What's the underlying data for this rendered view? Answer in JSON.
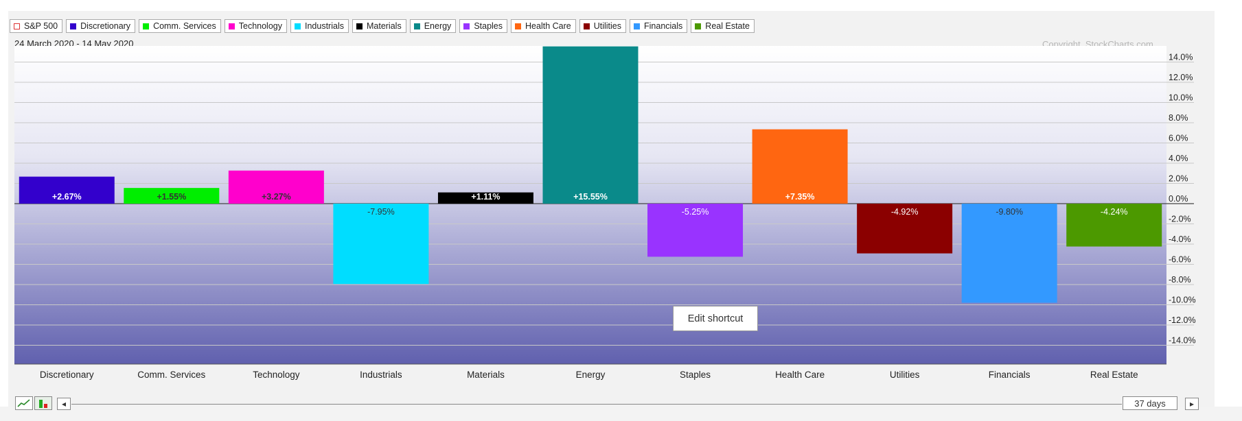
{
  "legend": [
    {
      "label": "S&P 500",
      "color": "#dd3333",
      "hollow": true
    },
    {
      "label": "Discretionary",
      "color": "#3300cc"
    },
    {
      "label": "Comm. Services",
      "color": "#00ee00"
    },
    {
      "label": "Technology",
      "color": "#ff00cc"
    },
    {
      "label": "Industrials",
      "color": "#00ddff"
    },
    {
      "label": "Materials",
      "color": "#000000"
    },
    {
      "label": "Energy",
      "color": "#0a8a8a"
    },
    {
      "label": "Staples",
      "color": "#9933ff"
    },
    {
      "label": "Health Care",
      "color": "#ff6611"
    },
    {
      "label": "Utilities",
      "color": "#8b0000"
    },
    {
      "label": "Financials",
      "color": "#3399ff"
    },
    {
      "label": "Real Estate",
      "color": "#4c9900"
    }
  ],
  "date_range": "24 March 2020 - 14 May 2020",
  "copyright": "Copyright, StockCharts.com",
  "tooltip": "Edit shortcut",
  "controls": {
    "period_label": "37 days",
    "left_arrow": "◂",
    "right_arrow": "▸"
  },
  "chart_data": {
    "type": "bar",
    "categories": [
      "Discretionary",
      "Comm. Services",
      "Technology",
      "Industrials",
      "Materials",
      "Energy",
      "Staples",
      "Health Care",
      "Utilities",
      "Financials",
      "Real Estate"
    ],
    "values": [
      2.67,
      1.55,
      3.27,
      -7.95,
      1.11,
      15.55,
      -5.25,
      7.35,
      -4.92,
      -9.8,
      -4.24
    ],
    "labels": [
      "+2.67%",
      "+1.55%",
      "+3.27%",
      "-7.95%",
      "+1.11%",
      "+15.55%",
      "-5.25%",
      "+7.35%",
      "-4.92%",
      "-9.80%",
      "-4.24%"
    ],
    "colors": [
      "#3300cc",
      "#00ee00",
      "#ff00cc",
      "#00ddff",
      "#000000",
      "#0a8a8a",
      "#9933ff",
      "#ff6611",
      "#8b0000",
      "#3399ff",
      "#4c9900"
    ],
    "label_colors": [
      "#ffffff",
      "#333333",
      "#333333",
      "#333333",
      "#ffffff",
      "#ffffff",
      "#ffffff",
      "#ffffff",
      "#ffffff",
      "#333333",
      "#ffffff"
    ],
    "ylim": [
      -16,
      15.5
    ],
    "yticks": [
      14,
      12,
      10,
      8,
      6,
      4,
      2,
      0,
      -2,
      -4,
      -6,
      -8,
      -10,
      -12,
      -14
    ],
    "ytick_labels": [
      "14.0%",
      "12.0%",
      "10.0%",
      "8.0%",
      "6.0%",
      "4.0%",
      "2.0%",
      "0.0%",
      "-2.0%",
      "-4.0%",
      "-6.0%",
      "-8.0%",
      "-10.0%",
      "-12.0%",
      "-14.0%"
    ],
    "grid": true
  }
}
